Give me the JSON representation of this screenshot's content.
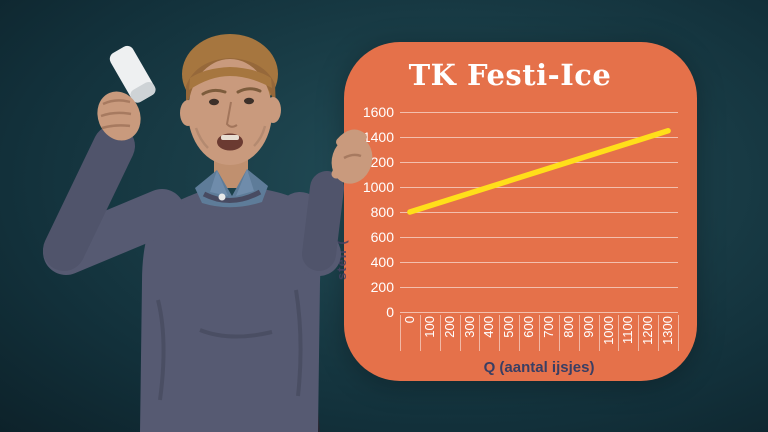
{
  "scene": {
    "type": "video-frame",
    "background_color": "#12303a",
    "presenter_colors": {
      "sweater": "#565a72",
      "shirt_collar": "#5e7c99",
      "skin": "#c99a7d",
      "hair": "#a6763f",
      "remote": "#eef0f1",
      "pants": "#262630"
    }
  },
  "chart_data": {
    "type": "line",
    "title": "TK Festi-Ice",
    "xlabel": "Q (aantal ijsjes)",
    "ylabel_visible_fragment": "sten (",
    "x_ticks": [
      0,
      100,
      200,
      300,
      400,
      500,
      600,
      700,
      800,
      900,
      1000,
      1100,
      1200,
      1300
    ],
    "y_ticks": [
      0,
      200,
      400,
      600,
      800,
      1000,
      1200,
      1400,
      1600
    ],
    "ylim": [
      0,
      1600
    ],
    "grid": "horizontal",
    "legend": false,
    "series": [
      {
        "name": "TK",
        "x": [
          0,
          1300
        ],
        "y": [
          800,
          1450
        ]
      }
    ],
    "colors": {
      "panel": "#e5714a",
      "line": "#ffdf1a",
      "gridline": "rgba(255,255,255,0.55)",
      "tick_text": "#ffffff",
      "axis_title_text": "#3a3e63"
    }
  }
}
